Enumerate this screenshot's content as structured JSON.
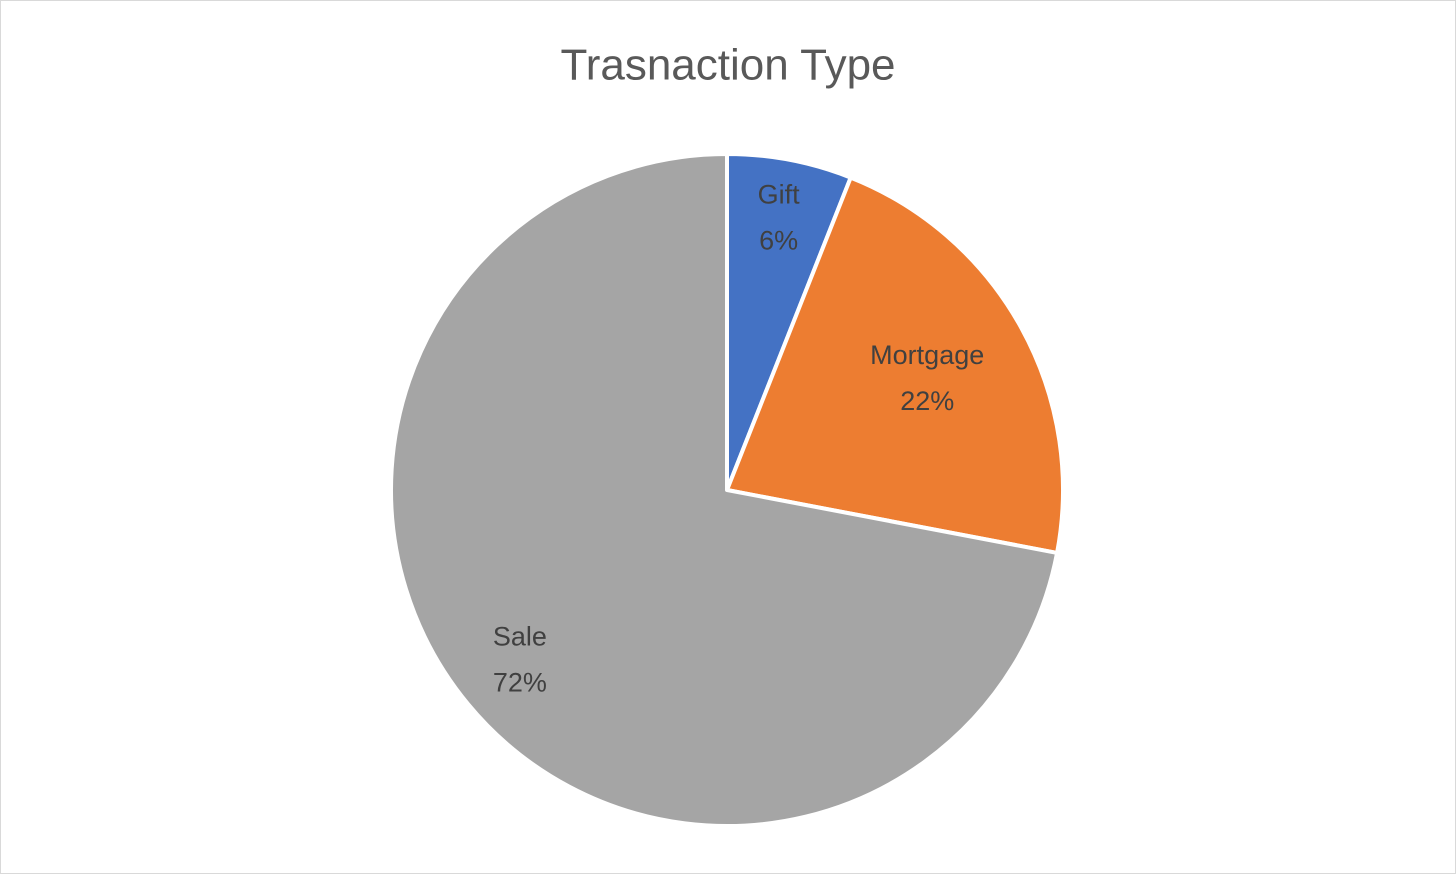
{
  "chart_data": {
    "type": "pie",
    "title": "Trasnaction Type",
    "categories": [
      "Gift",
      "Mortgage",
      "Sale"
    ],
    "values": [
      6,
      22,
      72
    ],
    "value_labels": [
      "6%",
      "22%",
      "72%"
    ],
    "colors": [
      "#4472c4",
      "#ed7d31",
      "#a5a5a5"
    ]
  }
}
